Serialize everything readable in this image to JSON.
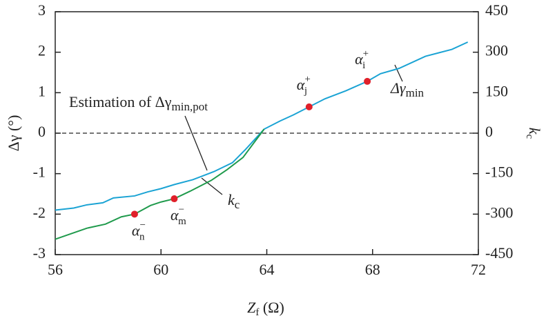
{
  "chart_data": {
    "type": "line",
    "xlabel": {
      "main": "Z",
      "sub": "f",
      "rest": " (Ω)"
    },
    "ylabel": "Δγ (°)",
    "y2label": {
      "main": "k",
      "sub": "c"
    },
    "xlim": [
      56,
      72
    ],
    "xticks": [
      56,
      60,
      64,
      68,
      72
    ],
    "ylim": [
      -3,
      3
    ],
    "yticks": [
      -3,
      -2,
      -1,
      0,
      1,
      2,
      3
    ],
    "y2lim": [
      -450,
      450
    ],
    "y2ticks": [
      -450,
      -300,
      -150,
      0,
      150,
      300,
      450
    ],
    "series": [
      {
        "name": "Δγmin",
        "color": "#1aa3d4",
        "axis": "y",
        "x": [
          56,
          56.7,
          57.2,
          57.8,
          58.2,
          59,
          59.5,
          60,
          60.5,
          61.2,
          62,
          62.7,
          63.2,
          63.9,
          64.5,
          65,
          65.6,
          66.2,
          67,
          67.8,
          68.3,
          69,
          70,
          71,
          71.6
        ],
        "values": [
          -1.9,
          -1.85,
          -1.77,
          -1.72,
          -1.6,
          -1.55,
          -1.45,
          -1.37,
          -1.27,
          -1.15,
          -0.95,
          -0.73,
          -0.4,
          0.1,
          0.3,
          0.45,
          0.65,
          0.85,
          1.05,
          1.28,
          1.47,
          1.6,
          1.9,
          2.07,
          2.25
        ]
      },
      {
        "name": "kc",
        "color": "#1f9a4c",
        "axis": "y2",
        "x": [
          56,
          57.2,
          57.9,
          58.5,
          59,
          59.6,
          60,
          60.5,
          61.1,
          61.9,
          62.5,
          63.1,
          63.9
        ],
        "values": [
          -393,
          -352,
          -337,
          -310,
          -300,
          -268,
          -255,
          -243,
          -215,
          -175,
          -135,
          -90,
          15
        ]
      }
    ],
    "points": [
      {
        "x": 59,
        "y": -300,
        "axis": "y2",
        "main": "α",
        "sub": "n",
        "sup": "−"
      },
      {
        "x": 60.5,
        "y": -243,
        "axis": "y2",
        "main": "α",
        "sub": "m",
        "sup": "−"
      },
      {
        "x": 65.6,
        "y": 0.65,
        "axis": "y",
        "main": "α",
        "sub": "j",
        "sup": "+"
      },
      {
        "x": 67.8,
        "y": 1.28,
        "axis": "y",
        "main": "α",
        "sub": "i",
        "sup": "+"
      }
    ],
    "annotations": [
      {
        "main": "Estimation of Δγ",
        "sub": "min,pot"
      },
      {
        "main": "k",
        "sub": "c"
      },
      {
        "main": "Δγ",
        "sub": "min"
      }
    ]
  }
}
